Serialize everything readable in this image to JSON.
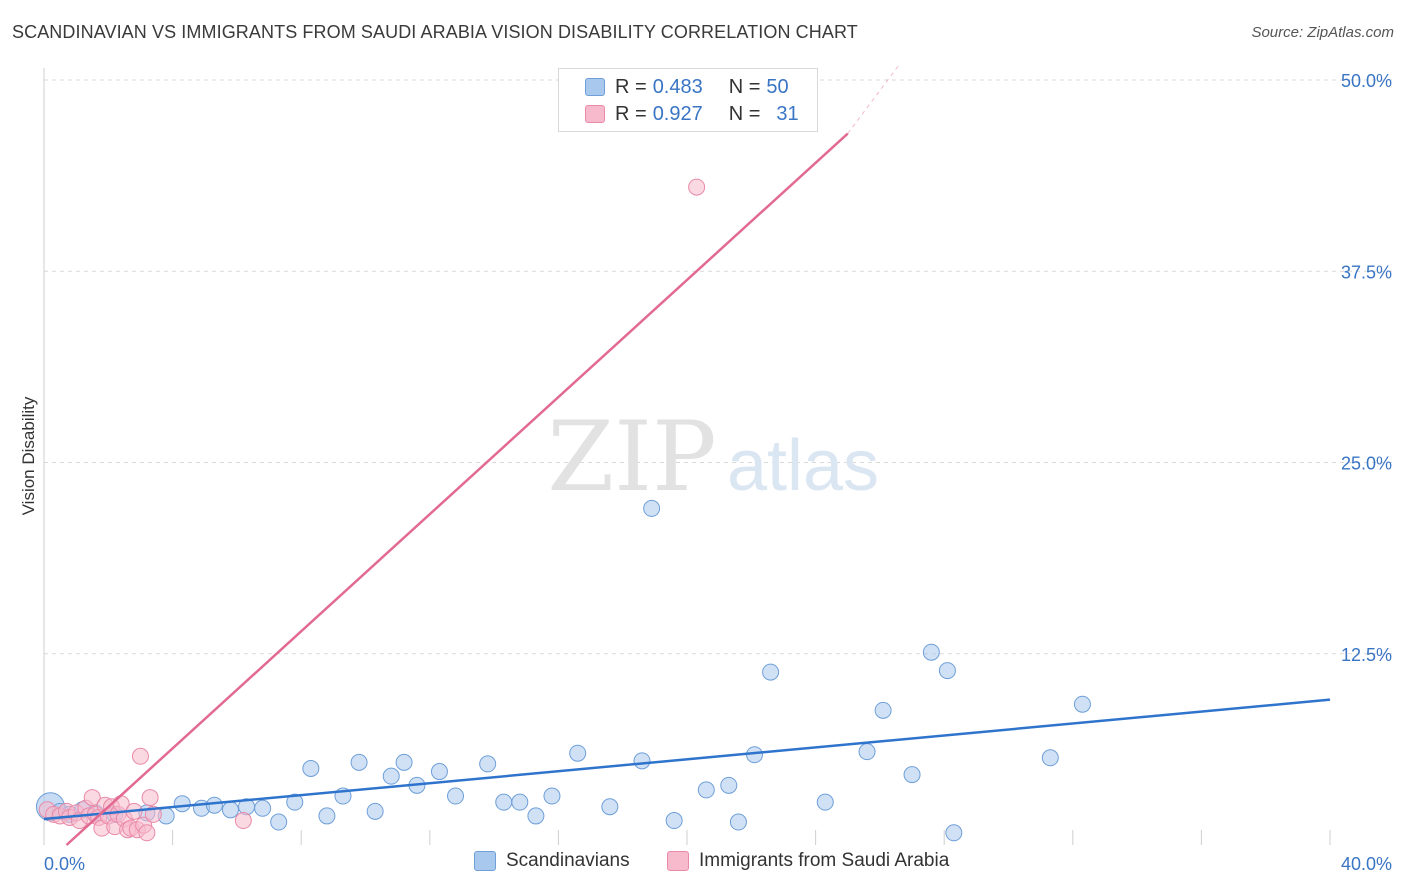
{
  "title": "SCANDINAVIAN VS IMMIGRANTS FROM SAUDI ARABIA VISION DISABILITY CORRELATION CHART",
  "source": "Source: ZipAtlas.com",
  "watermark": {
    "zip": "ZIP",
    "atlas": "atlas"
  },
  "legend": {
    "series1": {
      "r_label": "R = ",
      "r_value": "0.483",
      "n_label": "N = ",
      "n_value": "50"
    },
    "series2": {
      "r_label": "R = ",
      "r_value": "0.927",
      "n_label": "N = ",
      "n_value": "31"
    }
  },
  "bottom_legend": {
    "series1": "Scandinavians",
    "series2": "Immigrants from Saudi Arabia"
  },
  "colors": {
    "blue_fill": "#a9c8ee",
    "blue_stroke": "#6e9fd8",
    "blue_line": "#2f74cc",
    "pink_fill": "#f7b9cc",
    "pink_stroke": "#e98aa8",
    "pink_line": "#e26a92",
    "axis_label": "#3a75c4",
    "grid": "#d9d9d9"
  },
  "chart_data": {
    "type": "scatter",
    "title": "SCANDINAVIAN VS IMMIGRANTS FROM SAUDI ARABIA VISION DISABILITY CORRELATION CHART",
    "xlabel": "",
    "ylabel": "Vision Disability",
    "xlim": [
      0,
      40
    ],
    "ylim": [
      0,
      50
    ],
    "x_tick_labels": [
      "0.0%",
      "40.0%"
    ],
    "y_ticks": [
      12.5,
      25.0,
      37.5,
      50.0
    ],
    "y_tick_labels": [
      "12.5%",
      "25.0%",
      "37.5%",
      "50.0%"
    ],
    "series": [
      {
        "name": "Scandinavians",
        "r": 0.483,
        "n": 50,
        "trend": {
          "x": [
            0,
            40
          ],
          "y": [
            1.7,
            9.5
          ]
        },
        "points": [
          [
            0.2,
            2.5
          ],
          [
            0.5,
            2.2
          ],
          [
            0.8,
            2.0
          ],
          [
            1.2,
            2.3
          ],
          [
            1.6,
            2.1
          ],
          [
            2.2,
            2.0
          ],
          [
            3.2,
            2.1
          ],
          [
            3.8,
            1.9
          ],
          [
            4.3,
            2.7
          ],
          [
            4.9,
            2.4
          ],
          [
            5.3,
            2.6
          ],
          [
            5.8,
            2.3
          ],
          [
            6.3,
            2.5
          ],
          [
            6.8,
            2.4
          ],
          [
            7.3,
            1.5
          ],
          [
            7.8,
            2.8
          ],
          [
            8.3,
            5.0
          ],
          [
            8.8,
            1.9
          ],
          [
            9.3,
            3.2
          ],
          [
            9.8,
            5.4
          ],
          [
            10.3,
            2.2
          ],
          [
            10.8,
            4.5
          ],
          [
            11.2,
            5.4
          ],
          [
            11.6,
            3.9
          ],
          [
            12.3,
            4.8
          ],
          [
            12.8,
            3.2
          ],
          [
            13.8,
            5.3
          ],
          [
            14.3,
            2.8
          ],
          [
            14.8,
            2.8
          ],
          [
            15.3,
            1.9
          ],
          [
            15.8,
            3.2
          ],
          [
            16.6,
            6.0
          ],
          [
            17.6,
            2.5
          ],
          [
            18.6,
            5.5
          ],
          [
            18.9,
            22.0
          ],
          [
            19.6,
            1.6
          ],
          [
            20.6,
            3.6
          ],
          [
            21.3,
            3.9
          ],
          [
            21.6,
            1.5
          ],
          [
            22.1,
            5.9
          ],
          [
            22.6,
            11.3
          ],
          [
            24.3,
            2.8
          ],
          [
            25.6,
            6.1
          ],
          [
            26.1,
            8.8
          ],
          [
            27.0,
            4.6
          ],
          [
            27.6,
            12.6
          ],
          [
            28.1,
            11.4
          ],
          [
            28.3,
            0.8
          ],
          [
            31.3,
            5.7
          ],
          [
            32.3,
            9.2
          ]
        ]
      },
      {
        "name": "Immigrants from Saudi Arabia",
        "r": 0.927,
        "n": 31,
        "trend": {
          "x": [
            0.7,
            25.0
          ],
          "y": [
            0.0,
            46.5
          ]
        },
        "trend_extension": {
          "x": [
            25.0,
            26.6
          ],
          "y": [
            46.5,
            51.0
          ]
        },
        "points": [
          [
            0.1,
            2.3
          ],
          [
            0.3,
            2.0
          ],
          [
            0.5,
            1.9
          ],
          [
            0.7,
            2.2
          ],
          [
            0.8,
            1.8
          ],
          [
            1.0,
            2.1
          ],
          [
            1.1,
            1.6
          ],
          [
            1.3,
            2.4
          ],
          [
            1.4,
            1.9
          ],
          [
            1.5,
            3.1
          ],
          [
            1.6,
            2.0
          ],
          [
            1.7,
            1.8
          ],
          [
            1.8,
            1.1
          ],
          [
            1.9,
            2.6
          ],
          [
            2.0,
            1.9
          ],
          [
            2.1,
            2.5
          ],
          [
            2.2,
            1.2
          ],
          [
            2.3,
            2.0
          ],
          [
            2.4,
            2.7
          ],
          [
            2.5,
            1.7
          ],
          [
            2.6,
            1.0
          ],
          [
            2.7,
            1.1
          ],
          [
            2.8,
            2.2
          ],
          [
            2.9,
            1.0
          ],
          [
            3.0,
            5.8
          ],
          [
            3.1,
            1.3
          ],
          [
            3.2,
            0.8
          ],
          [
            3.3,
            3.1
          ],
          [
            3.4,
            2.0
          ],
          [
            6.2,
            1.6
          ],
          [
            20.3,
            43.0
          ]
        ]
      }
    ]
  }
}
